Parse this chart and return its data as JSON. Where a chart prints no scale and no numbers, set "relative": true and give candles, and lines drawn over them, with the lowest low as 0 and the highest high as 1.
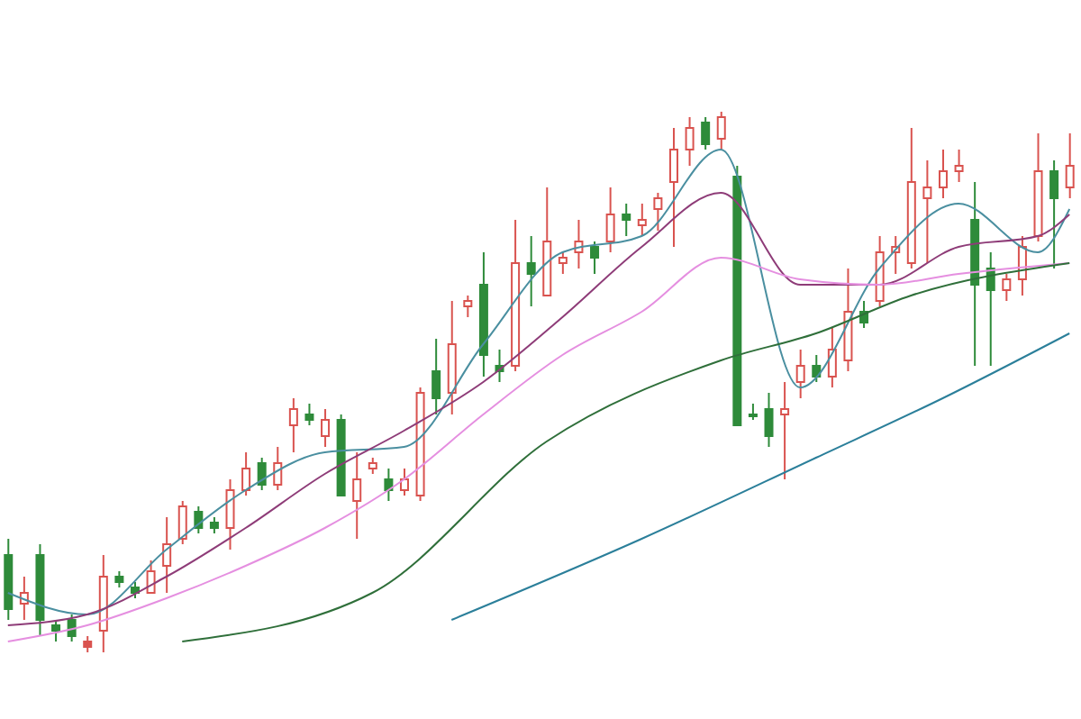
{
  "chart_data": {
    "type": "candlestick",
    "relative": true,
    "categories": [
      null,
      null,
      null,
      null,
      null,
      null,
      null,
      null,
      null,
      null,
      null,
      null,
      null,
      null,
      null,
      null,
      null,
      null,
      null,
      null,
      null,
      null,
      null,
      null,
      null,
      null,
      null,
      null,
      null,
      null,
      null,
      null,
      null,
      null,
      null,
      null,
      null,
      null,
      null,
      null,
      null,
      null,
      null,
      null,
      null,
      null,
      null,
      null,
      null,
      null,
      null,
      null,
      null,
      null,
      null,
      null,
      null,
      null,
      null,
      null,
      null,
      null,
      null,
      null,
      null,
      null,
      null,
      null
    ],
    "ohlc": [
      [
        0.18,
        0.21,
        0.06,
        0.08
      ],
      [
        0.09,
        0.14,
        0.06,
        0.11
      ],
      [
        0.18,
        0.2,
        0.03,
        0.06
      ],
      [
        0.05,
        0.06,
        0.02,
        0.04
      ],
      [
        0.06,
        0.07,
        0.02,
        0.03
      ],
      [
        0.02,
        0.03,
        0,
        0.01
      ],
      [
        0.04,
        0.18,
        0,
        0.14
      ],
      [
        0.14,
        0.15,
        0.12,
        0.13
      ],
      [
        0.12,
        0.13,
        0.1,
        0.11
      ],
      [
        0.11,
        0.17,
        0.11,
        0.15
      ],
      [
        0.16,
        0.25,
        0.11,
        0.2
      ],
      [
        0.21,
        0.28,
        0.2,
        0.27
      ],
      [
        0.26,
        0.27,
        0.22,
        0.23
      ],
      [
        0.24,
        0.25,
        0.22,
        0.23
      ],
      [
        0.23,
        0.32,
        0.19,
        0.3
      ],
      [
        0.3,
        0.37,
        0.29,
        0.34
      ],
      [
        0.35,
        0.36,
        0.3,
        0.31
      ],
      [
        0.31,
        0.38,
        0.3,
        0.35
      ],
      [
        0.42,
        0.47,
        0.37,
        0.45
      ],
      [
        0.44,
        0.46,
        0.42,
        0.43
      ],
      [
        0.4,
        0.45,
        0.38,
        0.43
      ],
      [
        0.43,
        0.44,
        0.29,
        0.29
      ],
      [
        0.28,
        0.37,
        0.21,
        0.32
      ],
      [
        0.34,
        0.36,
        0.33,
        0.35
      ],
      [
        0.32,
        0.34,
        0.28,
        0.3
      ],
      [
        0.3,
        0.34,
        0.29,
        0.32
      ],
      [
        0.29,
        0.49,
        0.28,
        0.48
      ],
      [
        0.52,
        0.58,
        0.44,
        0.47
      ],
      [
        0.48,
        0.65,
        0.44,
        0.57
      ],
      [
        0.64,
        0.66,
        0.62,
        0.65
      ],
      [
        0.68,
        0.74,
        0.51,
        0.55
      ],
      [
        0.53,
        0.56,
        0.5,
        0.52
      ],
      [
        0.53,
        0.8,
        0.52,
        0.72
      ],
      [
        0.72,
        0.77,
        0.64,
        0.7
      ],
      [
        0.66,
        0.86,
        0.66,
        0.76
      ],
      [
        0.72,
        0.74,
        0.7,
        0.73
      ],
      [
        0.74,
        0.8,
        0.71,
        0.76
      ],
      [
        0.75,
        0.76,
        0.7,
        0.73
      ],
      [
        0.76,
        0.86,
        0.74,
        0.81
      ],
      [
        0.81,
        0.83,
        0.77,
        0.8
      ],
      [
        0.79,
        0.83,
        0.77,
        0.8
      ],
      [
        0.82,
        0.85,
        0.78,
        0.84
      ],
      [
        0.87,
        0.97,
        0.75,
        0.93
      ],
      [
        0.93,
        0.99,
        0.9,
        0.97
      ],
      [
        0.98,
        0.99,
        0.93,
        0.94
      ],
      [
        0.95,
        1,
        0.93,
        0.99
      ],
      [
        0.88,
        0.9,
        0.42,
        0.42
      ],
      [
        0.44,
        0.46,
        0.43,
        0.44
      ],
      [
        0.45,
        0.48,
        0.38,
        0.4
      ],
      [
        0.44,
        0.5,
        0.32,
        0.45
      ],
      [
        0.5,
        0.56,
        0.47,
        0.53
      ],
      [
        0.53,
        0.55,
        0.5,
        0.51
      ],
      [
        0.51,
        0.6,
        0.49,
        0.56
      ],
      [
        0.54,
        0.71,
        0.52,
        0.63
      ],
      [
        0.63,
        0.65,
        0.6,
        0.61
      ],
      [
        0.65,
        0.77,
        0.64,
        0.74
      ],
      [
        0.74,
        0.77,
        0.7,
        0.75
      ],
      [
        0.72,
        0.97,
        0.71,
        0.87
      ],
      [
        0.84,
        0.91,
        0.72,
        0.86
      ],
      [
        0.86,
        0.93,
        0.84,
        0.89
      ],
      [
        0.89,
        0.93,
        0.87,
        0.9
      ],
      [
        0.8,
        0.87,
        0.53,
        0.68
      ],
      [
        0.71,
        0.74,
        0.53,
        0.67
      ],
      [
        0.67,
        0.7,
        0.65,
        0.69
      ],
      [
        0.69,
        0.77,
        0.66,
        0.75
      ],
      [
        0.77,
        0.96,
        0.76,
        0.89
      ],
      [
        0.89,
        0.91,
        0.71,
        0.84
      ],
      [
        0.86,
        0.96,
        0.84,
        0.9
      ]
    ],
    "colors": [
      "#2e8b3a",
      "#d9534f",
      "#2e8b3a",
      "#2e8b3a",
      "#2e8b3a",
      "#d9534f",
      "#d9534f",
      "#2e8b3a",
      "#2e8b3a",
      "#d9534f",
      "#d9534f",
      "#d9534f",
      "#2e8b3a",
      "#2e8b3a",
      "#d9534f",
      "#d9534f",
      "#2e8b3a",
      "#d9534f",
      "#d9534f",
      "#2e8b3a",
      "#d9534f",
      "#2e8b3a",
      "#d9534f",
      "#d9534f",
      "#2e8b3a",
      "#d9534f",
      "#d9534f",
      "#2e8b3a",
      "#d9534f",
      "#d9534f",
      "#2e8b3a",
      "#2e8b3a",
      "#d9534f",
      "#2e8b3a",
      "#d9534f",
      "#d9534f",
      "#d9534f",
      "#2e8b3a",
      "#d9534f",
      "#2e8b3a",
      "#d9534f",
      "#d9534f",
      "#d9534f",
      "#d9534f",
      "#2e8b3a",
      "#d9534f",
      "#2e8b3a",
      "#2e8b3a",
      "#2e8b3a",
      "#d9534f",
      "#d9534f",
      "#2e8b3a",
      "#d9534f",
      "#d9534f",
      "#2e8b3a",
      "#d9534f",
      "#d9534f",
      "#d9534f",
      "#d9534f",
      "#d9534f",
      "#d9534f",
      "#2e8b3a",
      "#2e8b3a",
      "#d9534f",
      "#d9534f",
      "#d9534f",
      "#2e8b3a",
      "#d9534f"
    ],
    "series": [
      {
        "type": "line",
        "color": "#4a8fa0",
        "values": [
          0.11,
          null,
          null,
          null,
          null,
          0.07,
          null,
          null,
          null,
          null,
          0.19,
          null,
          null,
          null,
          null,
          0.3,
          null,
          null,
          null,
          null,
          0.37,
          null,
          null,
          null,
          null,
          0.38,
          null,
          null,
          null,
          null,
          0.57,
          null,
          null,
          null,
          null,
          0.74,
          null,
          null,
          null,
          null,
          0.77,
          null,
          null,
          null,
          null,
          0.93,
          null,
          null,
          null,
          null,
          0.49,
          null,
          null,
          null,
          null,
          0.71,
          null,
          null,
          null,
          null,
          0.83,
          null,
          null,
          null,
          null,
          0.74,
          null,
          0.82
        ]
      },
      {
        "type": "line",
        "color": "#8e3c78",
        "values": [
          0.05,
          null,
          null,
          null,
          null,
          0.07,
          null,
          null,
          null,
          null,
          0.14,
          null,
          null,
          null,
          null,
          0.23,
          null,
          null,
          null,
          null,
          0.33,
          null,
          null,
          null,
          null,
          0.41,
          null,
          null,
          null,
          null,
          0.5,
          null,
          null,
          null,
          null,
          0.62,
          null,
          null,
          null,
          null,
          0.75,
          null,
          null,
          null,
          null,
          0.85,
          null,
          null,
          null,
          null,
          0.68,
          null,
          null,
          null,
          null,
          0.68,
          null,
          null,
          null,
          null,
          0.75,
          null,
          null,
          null,
          null,
          0.77,
          null,
          0.81
        ]
      },
      {
        "type": "line",
        "color": "#e58fe0",
        "values": [
          0.02,
          null,
          null,
          null,
          null,
          0.05,
          null,
          null,
          null,
          null,
          0.1,
          null,
          null,
          null,
          null,
          0.16,
          null,
          null,
          null,
          null,
          0.23,
          null,
          null,
          null,
          null,
          0.32,
          null,
          null,
          null,
          null,
          0.44,
          null,
          null,
          null,
          null,
          0.55,
          null,
          null,
          null,
          null,
          0.63,
          null,
          null,
          null,
          null,
          0.73,
          null,
          null,
          null,
          null,
          0.69,
          null,
          null,
          null,
          null,
          0.68,
          null,
          null,
          null,
          null,
          0.7,
          null,
          null,
          null,
          null,
          null,
          null,
          0.72
        ]
      },
      {
        "type": "line",
        "color": "#2f6f3a",
        "values": [
          null,
          null,
          null,
          null,
          null,
          null,
          null,
          null,
          null,
          null,
          null,
          0.02,
          null,
          null,
          null,
          null,
          null,
          null,
          null,
          null,
          null,
          null,
          null,
          0.11,
          null,
          null,
          null,
          null,
          null,
          null,
          null,
          null,
          null,
          null,
          0.39,
          null,
          null,
          null,
          null,
          null,
          null,
          null,
          null,
          null,
          null,
          0.54,
          null,
          null,
          null,
          null,
          null,
          0.59,
          null,
          null,
          null,
          null,
          null,
          0.66,
          null,
          null,
          null,
          null,
          null,
          null,
          null,
          null,
          null,
          0.72
        ]
      },
      {
        "type": "line",
        "color": "#2b7f9a",
        "values": [
          null,
          null,
          null,
          null,
          null,
          null,
          null,
          null,
          null,
          null,
          null,
          null,
          null,
          null,
          null,
          null,
          null,
          null,
          null,
          null,
          null,
          null,
          null,
          null,
          null,
          null,
          null,
          null,
          0.06,
          null,
          null,
          null,
          null,
          null,
          null,
          null,
          null,
          null,
          null,
          null,
          0.21,
          null,
          null,
          null,
          null,
          null,
          null,
          null,
          null,
          null,
          null,
          0.36,
          null,
          null,
          null,
          null,
          null,
          null,
          null,
          0.47,
          null,
          null,
          null,
          null,
          null,
          null,
          null,
          0.59
        ]
      }
    ]
  }
}
